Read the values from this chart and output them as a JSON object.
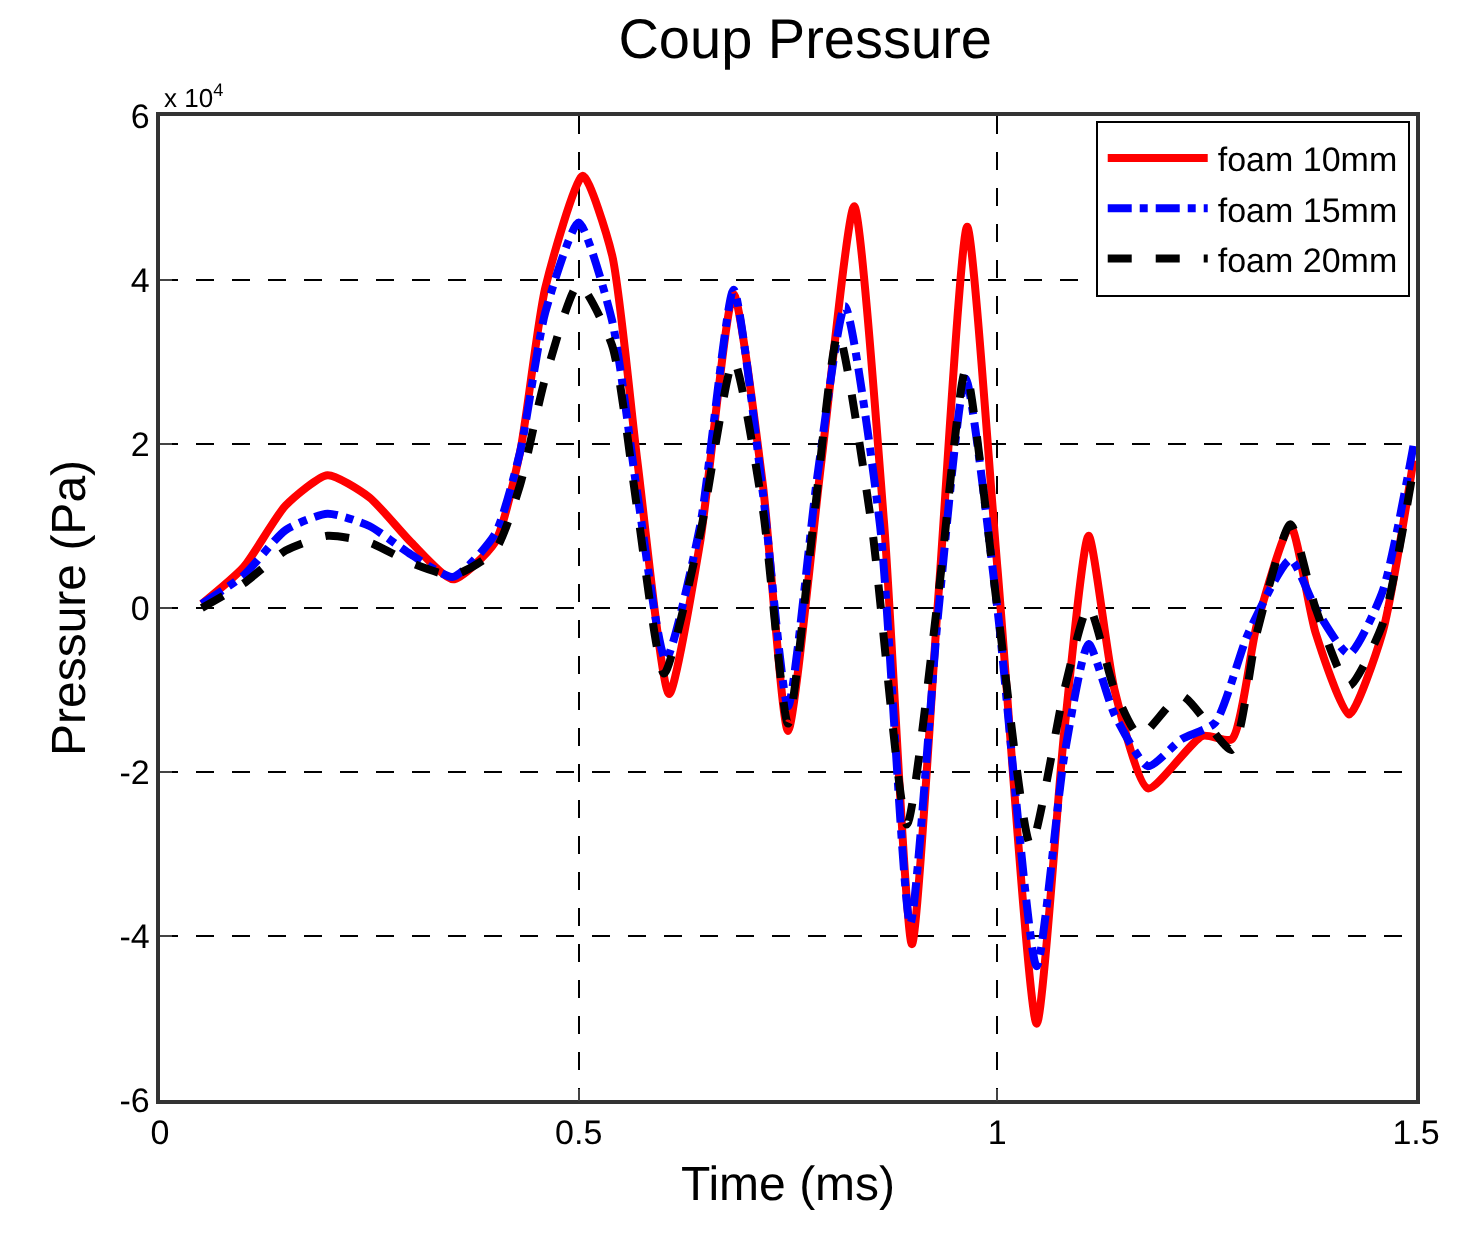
{
  "chart_data": {
    "type": "line",
    "title": "Coup Pressure",
    "xlabel": "Time (ms)",
    "ylabel": "Pressure (Pa)",
    "annotations": [
      "x 10$^{4}$"
    ],
    "xlim": [
      0,
      1.5
    ],
    "xticks": [
      0,
      0.5,
      1,
      1.5
    ],
    "ylim": [
      -6,
      6
    ],
    "yticks": [
      -6,
      -4,
      -2,
      0,
      2,
      4,
      6
    ],
    "grid": true,
    "legend": "top right",
    "marker": "none",
    "series": [
      {
        "name": "foam 10mm",
        "color": "#ff0000",
        "line_style": "solid",
        "x": [
          0.05,
          0.1,
          0.15,
          0.2,
          0.25,
          0.3,
          0.35,
          0.4,
          0.43,
          0.46,
          0.505,
          0.54,
          0.57,
          0.608,
          0.645,
          0.685,
          0.72,
          0.75,
          0.79,
          0.829,
          0.865,
          0.898,
          0.93,
          0.964,
          1.0,
          1.047,
          1.08,
          1.109,
          1.14,
          1.18,
          1.245,
          1.28,
          1.31,
          1.35,
          1.38,
          1.42,
          1.46,
          1.497
        ],
        "values": [
          0.05,
          0.5,
          1.25,
          1.62,
          1.35,
          0.8,
          0.35,
          0.8,
          1.9,
          3.9,
          5.27,
          4.3,
          1.8,
          -1.05,
          0.8,
          3.83,
          1.5,
          -1.5,
          1.8,
          4.9,
          1.0,
          -4.1,
          0.2,
          4.65,
          0.5,
          -5.07,
          -1.5,
          0.88,
          -1.0,
          -2.2,
          -1.56,
          -1.6,
          -0.2,
          1.0,
          -0.3,
          -1.3,
          -0.3,
          1.8
        ]
      },
      {
        "name": "foam 15mm",
        "color": "#0000ff",
        "line_style": "dashdot",
        "x": [
          0.05,
          0.1,
          0.15,
          0.2,
          0.25,
          0.3,
          0.35,
          0.4,
          0.43,
          0.46,
          0.5,
          0.54,
          0.57,
          0.604,
          0.645,
          0.685,
          0.72,
          0.75,
          0.785,
          0.818,
          0.86,
          0.896,
          0.93,
          0.962,
          1.0,
          1.047,
          1.08,
          1.109,
          1.14,
          1.18,
          1.22,
          1.26,
          1.3,
          1.35,
          1.38,
          1.42,
          1.46,
          1.497
        ],
        "values": [
          0.05,
          0.4,
          0.95,
          1.15,
          1.0,
          0.65,
          0.38,
          0.9,
          1.9,
          3.6,
          4.7,
          3.5,
          1.4,
          -0.63,
          1.0,
          3.88,
          1.4,
          -1.2,
          1.6,
          3.68,
          1.0,
          -3.85,
          0,
          2.8,
          0.0,
          -4.37,
          -1.8,
          -0.44,
          -1.3,
          -1.93,
          -1.6,
          -1.4,
          -0.3,
          0.59,
          0.0,
          -0.56,
          0.2,
          1.98
        ]
      },
      {
        "name": "foam 20mm",
        "color": "#000000",
        "line_style": "dashed",
        "x": [
          0.05,
          0.1,
          0.15,
          0.2,
          0.25,
          0.3,
          0.35,
          0.4,
          0.43,
          0.46,
          0.5,
          0.54,
          0.57,
          0.602,
          0.645,
          0.685,
          0.72,
          0.75,
          0.78,
          0.81,
          0.85,
          0.892,
          0.93,
          0.962,
          1.0,
          1.04,
          1.08,
          1.109,
          1.14,
          1.17,
          1.22,
          1.28,
          1.31,
          1.35,
          1.38,
          1.42,
          1.46,
          1.497
        ],
        "values": [
          0.0,
          0.3,
          0.7,
          0.88,
          0.8,
          0.55,
          0.4,
          0.7,
          1.5,
          2.8,
          3.95,
          3.2,
          1.2,
          -0.8,
          0.9,
          3.02,
          1.2,
          -1.41,
          1.0,
          3.35,
          1.0,
          -2.64,
          0.2,
          2.9,
          0.0,
          -2.9,
          -1.0,
          0.02,
          -1.0,
          -1.56,
          -1.07,
          -1.73,
          -0.3,
          1.02,
          0.0,
          -0.95,
          -0.2,
          1.7
        ]
      }
    ]
  }
}
